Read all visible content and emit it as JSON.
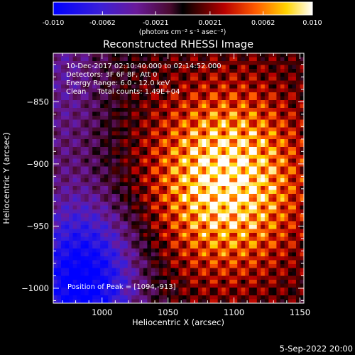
{
  "colorbar": {
    "min": -0.01,
    "max": 0.01,
    "tick_labels": [
      "-0.010",
      "-0.0062",
      "-0.0021",
      "0.0021",
      "0.0062",
      "0.010"
    ],
    "tick_values": [
      -0.01,
      -0.0062,
      -0.0021,
      0.0021,
      0.0062,
      0.01
    ],
    "unit_text": "(photons cm⁻² s⁻¹ asec⁻²)",
    "colormap": "blue-purple-red-yellow-white"
  },
  "chart_data": {
    "type": "heatmap",
    "title": "Reconstructed RHESSI Image",
    "xlabel": "Heliocentric X (arcsec)",
    "ylabel": "Heliocentric Y (arcsec)",
    "xlim": [
      963,
      1153
    ],
    "ylim": [
      -1012,
      -811
    ],
    "x_ticks": [
      1000,
      1050,
      1100,
      1150
    ],
    "y_ticks": [
      -850,
      -900,
      -950,
      -1000
    ],
    "x_tick_labels": [
      "1000",
      "1050",
      "1100",
      "1150"
    ],
    "y_tick_labels": [
      "−850",
      "−900",
      "−950",
      "−1000"
    ],
    "peak": {
      "x": 1094,
      "y": -913
    },
    "annotations": [
      "10-Dec-2017 02:10:40.000 to 02:14:52.000",
      "Detectors: 3F 6F 8F, Att 0",
      "Energy Range: 6.0 - 12.0 keV",
      "Clean     Total counts: 1.49E+04"
    ],
    "peak_text": "Position of Peak = [1094,-913]"
  },
  "footer": {
    "timestamp": "5-Sep-2022 20:00"
  }
}
